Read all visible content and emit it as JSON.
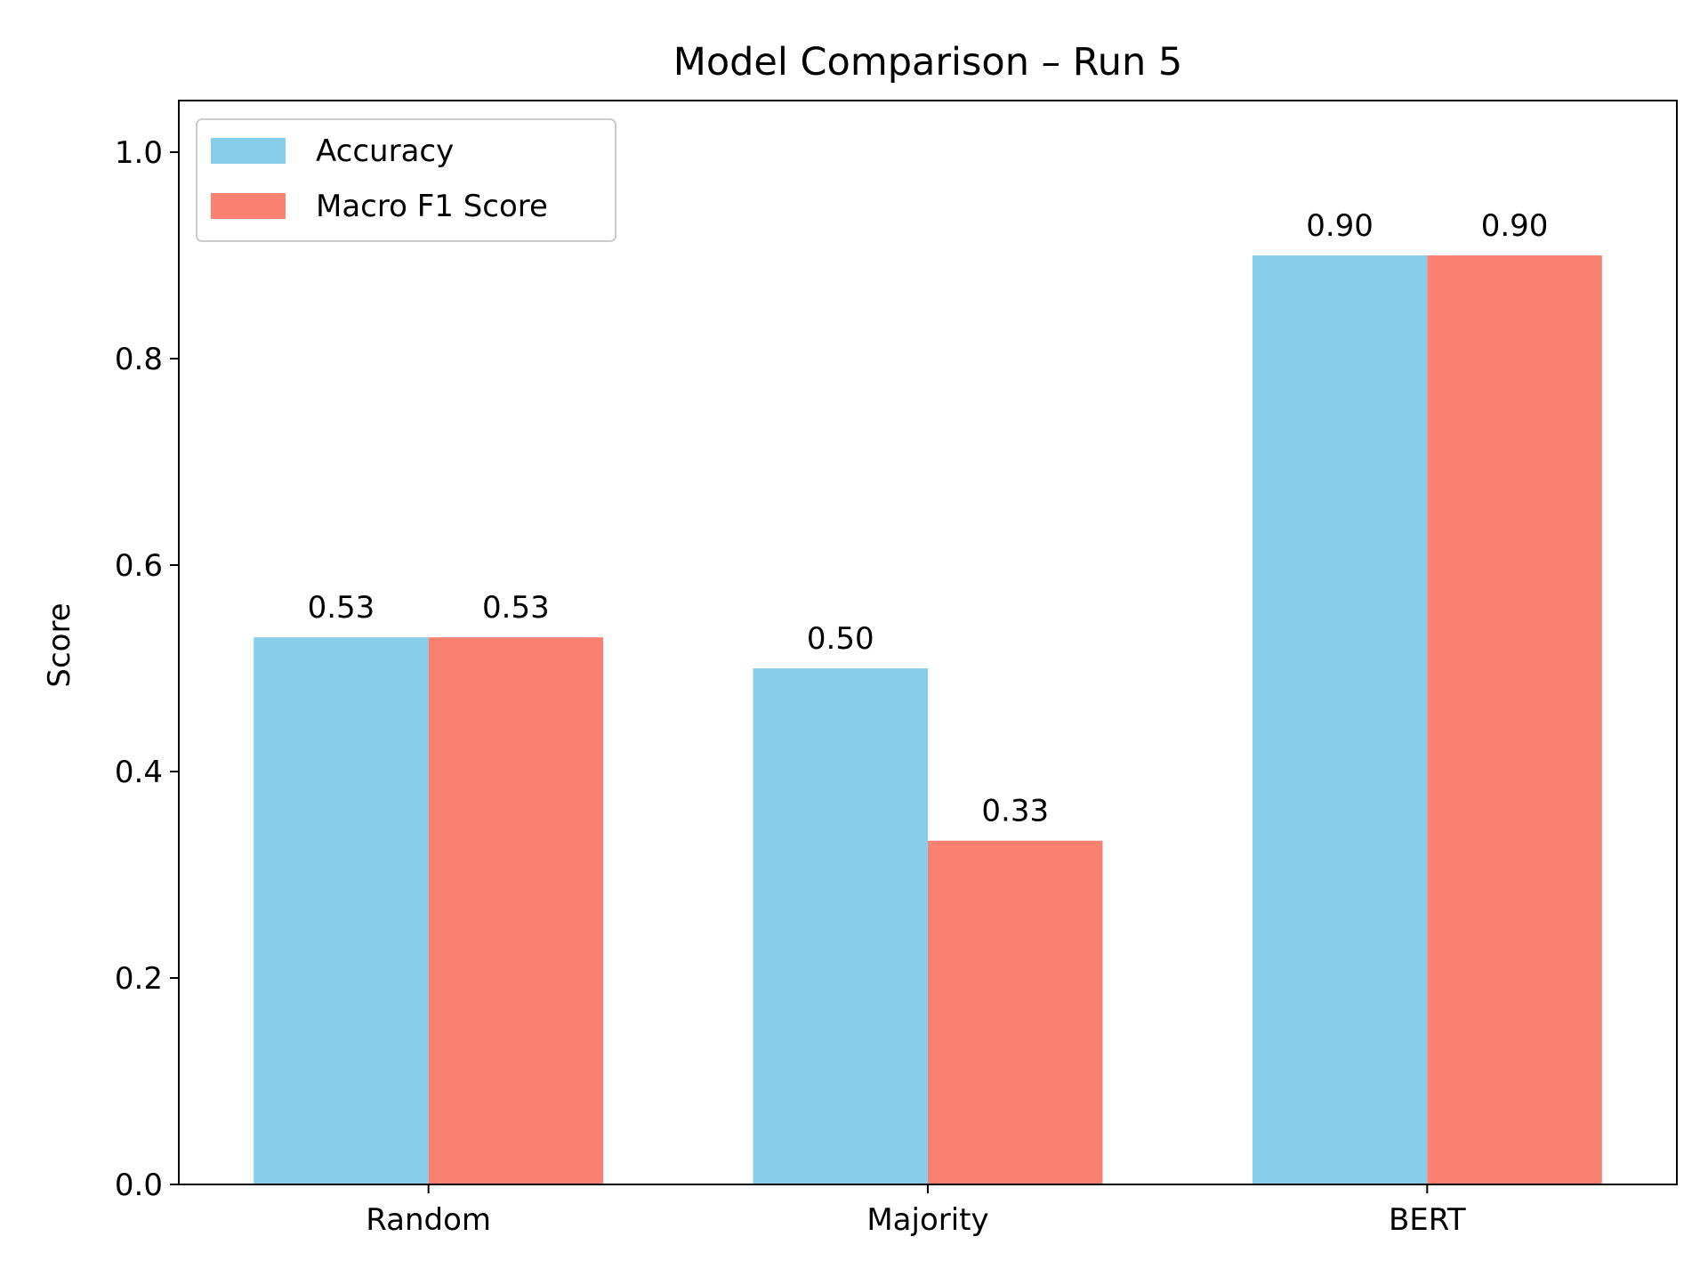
{
  "chart_data": {
    "type": "bar",
    "title": "Model Comparison – Run 5",
    "xlabel": "",
    "ylabel": "Score",
    "categories": [
      "Random",
      "Majority",
      "BERT"
    ],
    "series": [
      {
        "name": "Accuracy",
        "values": [
          0.53,
          0.5,
          0.9
        ],
        "labels": [
          "0.53",
          "0.50",
          "0.90"
        ],
        "color": "#87CEEB"
      },
      {
        "name": "Macro F1 Score",
        "values": [
          0.53,
          0.333,
          0.9
        ],
        "labels": [
          "0.53",
          "0.33",
          "0.90"
        ],
        "color": "#FA8072"
      }
    ],
    "ylim": [
      0,
      1.05
    ],
    "yticks": [
      0.0,
      0.2,
      0.4,
      0.6,
      0.8,
      1.0
    ],
    "ytick_labels": [
      "0.0",
      "0.2",
      "0.4",
      "0.6",
      "0.8",
      "1.0"
    ],
    "grid": false,
    "legend_position": "top-left"
  }
}
